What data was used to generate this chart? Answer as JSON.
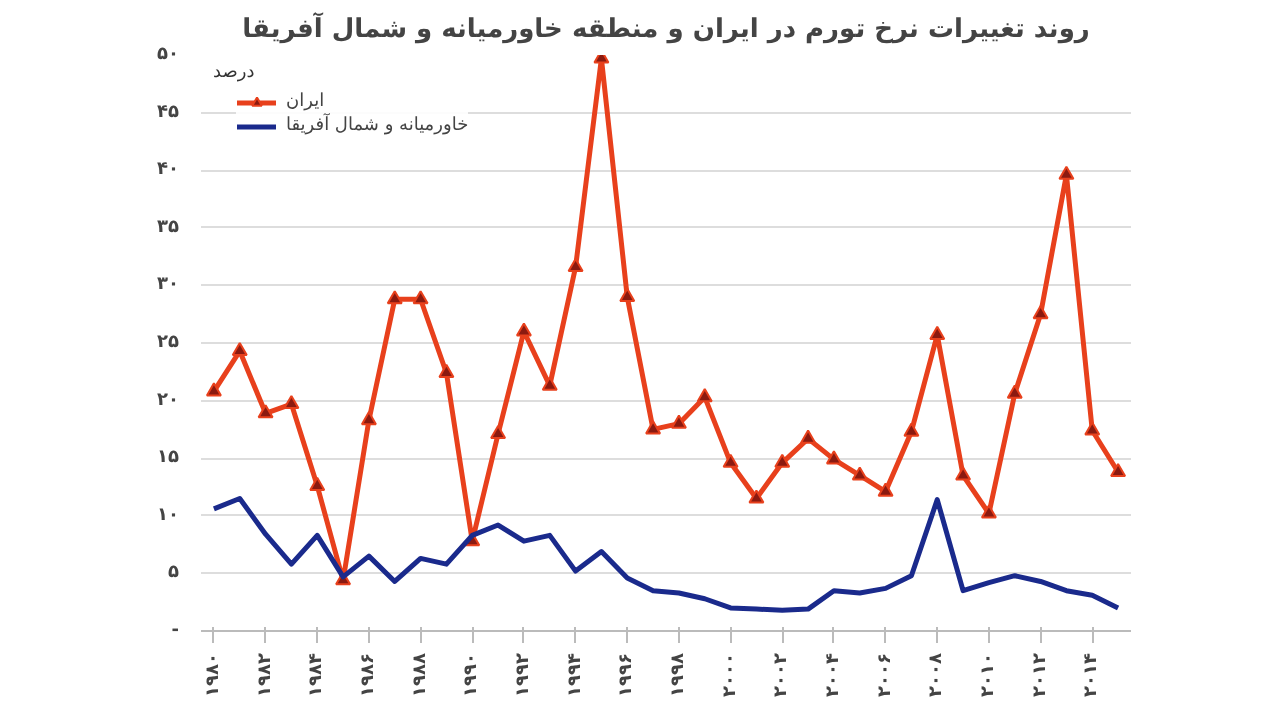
{
  "chart_data": {
    "type": "line",
    "title": "روند تغییرات نرخ تورم در ایران و منطقه خاورمیانه و شمال آفریقا",
    "ylabel": "درصد",
    "x": [
      1980,
      1981,
      1982,
      1983,
      1984,
      1985,
      1986,
      1987,
      1988,
      1989,
      1990,
      1991,
      1992,
      1993,
      1994,
      1995,
      1996,
      1997,
      1998,
      1999,
      2000,
      2001,
      2002,
      2003,
      2004,
      2005,
      2006,
      2007,
      2008,
      2009,
      2010,
      2011,
      2012,
      2013,
      2014,
      2015
    ],
    "series": [
      {
        "name": "ایران",
        "color": "#e8401c",
        "marker": "triangle",
        "values": [
          20.8,
          24.3,
          18.9,
          19.7,
          12.6,
          4.4,
          18.3,
          28.8,
          28.8,
          22.4,
          7.8,
          17.1,
          26.0,
          21.3,
          31.6,
          49.7,
          29.0,
          17.5,
          18.0,
          20.3,
          14.6,
          11.5,
          14.6,
          16.7,
          14.9,
          13.5,
          12.1,
          17.3,
          25.7,
          13.5,
          10.2,
          20.6,
          27.5,
          39.6,
          17.4,
          13.8
        ]
      },
      {
        "name": "خاورمیانه و شمال آفریقا",
        "color": "#1a2a8c",
        "marker": "none",
        "values": [
          10.6,
          11.5,
          8.4,
          5.8,
          8.3,
          4.7,
          6.5,
          4.3,
          6.3,
          5.8,
          8.3,
          9.2,
          7.8,
          8.3,
          5.2,
          6.9,
          4.6,
          3.5,
          3.3,
          2.8,
          2.0,
          1.9,
          1.8,
          1.9,
          3.5,
          3.3,
          3.7,
          4.8,
          11.4,
          3.5,
          4.2,
          4.8,
          4.3,
          3.5,
          3.1,
          2.0
        ]
      }
    ],
    "xlim": [
      1979.5,
      2015.5
    ],
    "xticks": [
      {
        "value": 1980,
        "label": "۱۹۸۰"
      },
      {
        "value": 1982,
        "label": "۱۹۸۲"
      },
      {
        "value": 1984,
        "label": "۱۹۸۴"
      },
      {
        "value": 1986,
        "label": "۱۹۸۶"
      },
      {
        "value": 1988,
        "label": "۱۹۸۸"
      },
      {
        "value": 1990,
        "label": "۱۹۹۰"
      },
      {
        "value": 1992,
        "label": "۱۹۹۲"
      },
      {
        "value": 1994,
        "label": "۱۹۹۴"
      },
      {
        "value": 1996,
        "label": "۱۹۹۶"
      },
      {
        "value": 1998,
        "label": "۱۹۹۸"
      },
      {
        "value": 2000,
        "label": "۲۰۰۰"
      },
      {
        "value": 2002,
        "label": "۲۰۰۲"
      },
      {
        "value": 2004,
        "label": "۲۰۰۴"
      },
      {
        "value": 2006,
        "label": "۲۰۰۶"
      },
      {
        "value": 2008,
        "label": "۲۰۰۸"
      },
      {
        "value": 2010,
        "label": "۲۰۱۰"
      },
      {
        "value": 2012,
        "label": "۲۰۱۲"
      },
      {
        "value": 2014,
        "label": "۲۰۱۴"
      }
    ],
    "ylim": [
      0,
      50
    ],
    "yticks": [
      {
        "value": 0,
        "label": "-"
      },
      {
        "value": 5,
        "label": "۵"
      },
      {
        "value": 10,
        "label": "۱۰"
      },
      {
        "value": 15,
        "label": "۱۵"
      },
      {
        "value": 20,
        "label": "۲۰"
      },
      {
        "value": 25,
        "label": "۲۵"
      },
      {
        "value": 30,
        "label": "۳۰"
      },
      {
        "value": 35,
        "label": "۳۵"
      },
      {
        "value": 40,
        "label": "۴۰"
      },
      {
        "value": 45,
        "label": "۴۵"
      },
      {
        "value": 50,
        "label": "۵۰"
      }
    ],
    "grid": "y",
    "legend": "top left",
    "line_style": "solid"
  }
}
